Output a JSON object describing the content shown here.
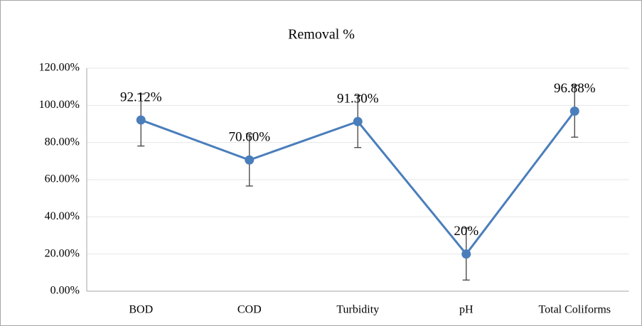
{
  "chart_data": {
    "type": "line",
    "title": "Removal %",
    "categories": [
      "BOD",
      "COD",
      "Turbidity",
      "pH",
      "Total Coliforms"
    ],
    "values": [
      92.12,
      70.6,
      91.3,
      20,
      96.88
    ],
    "value_labels": [
      "92.12%",
      "70.60%",
      "91.30%",
      "20%",
      "96.88%"
    ],
    "errors": [
      14,
      14,
      14,
      14,
      14
    ],
    "color": "#4a7ebb",
    "error_color": "#404040",
    "ylim": [
      0,
      120
    ],
    "yticks": [
      {
        "value": 0,
        "label": "0.00%"
      },
      {
        "value": 20,
        "label": "20.00%"
      },
      {
        "value": 40,
        "label": "40.00%"
      },
      {
        "value": 60,
        "label": "60.00%"
      },
      {
        "value": 80,
        "label": "80.00%"
      },
      {
        "value": 100,
        "label": "100.00%"
      },
      {
        "value": 120,
        "label": "120.00%"
      }
    ],
    "grid": true
  }
}
